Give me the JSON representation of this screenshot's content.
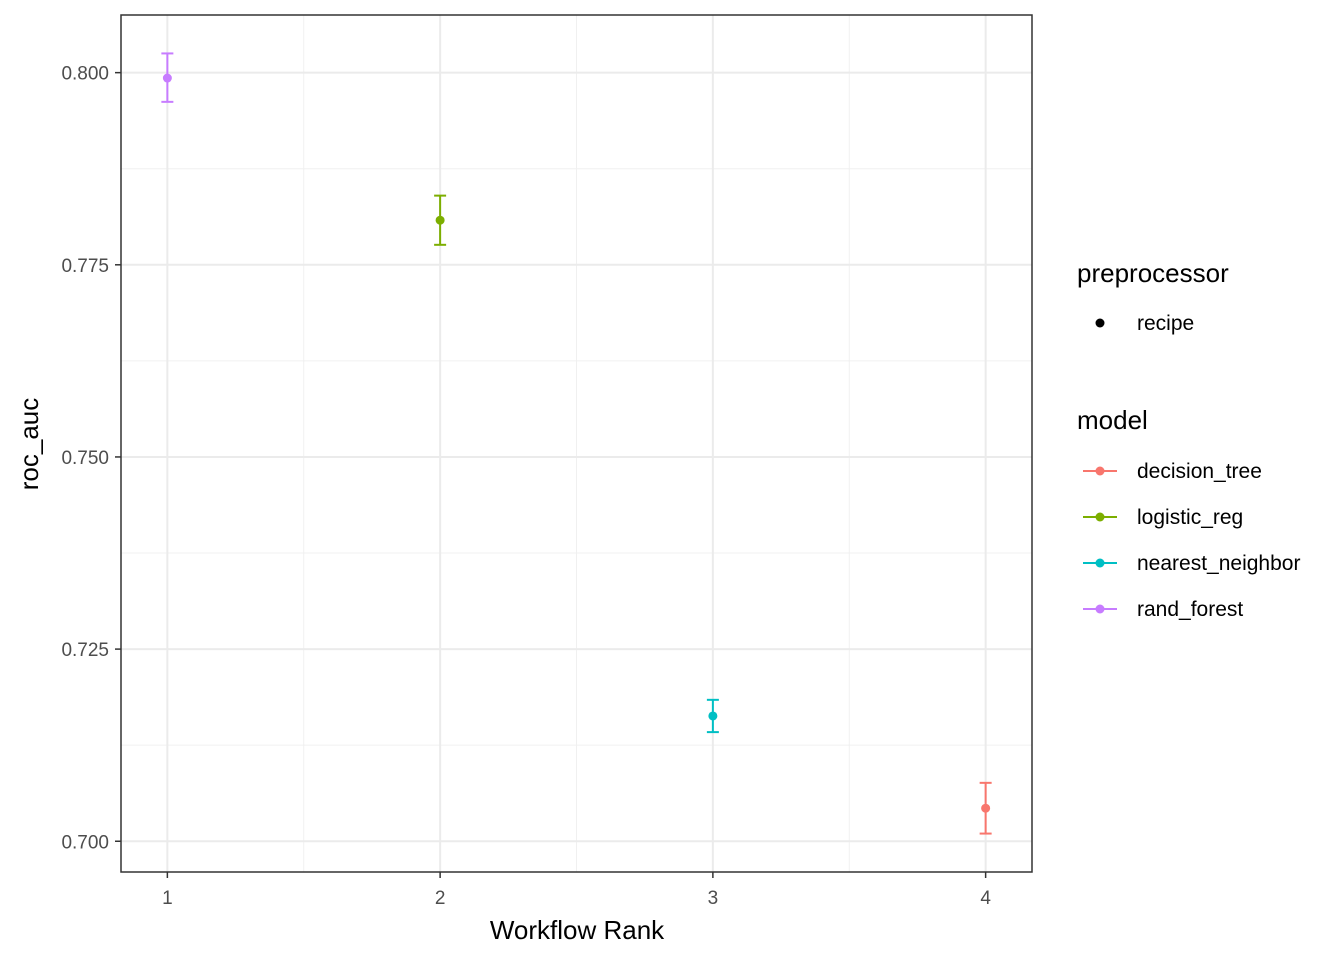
{
  "chart_data": {
    "type": "scatter",
    "xlabel": "Workflow Rank",
    "ylabel": "roc_auc",
    "x_ticks": [
      1,
      2,
      3,
      4
    ],
    "y_ticks": [
      "0.700",
      "0.725",
      "0.750",
      "0.775",
      "0.800"
    ],
    "xlim": [
      0.83,
      4.17
    ],
    "ylim": [
      0.696,
      0.8075
    ],
    "grid": true,
    "legend_position": "right",
    "points": [
      {
        "rank": 1,
        "model": "rand_forest",
        "preprocessor": "recipe",
        "mean": 0.7993,
        "lower": 0.7962,
        "upper": 0.8025
      },
      {
        "rank": 2,
        "model": "logistic_reg",
        "preprocessor": "recipe",
        "mean": 0.7808,
        "lower": 0.7776,
        "upper": 0.784
      },
      {
        "rank": 3,
        "model": "nearest_neighbor",
        "preprocessor": "recipe",
        "mean": 0.7163,
        "lower": 0.7142,
        "upper": 0.7184
      },
      {
        "rank": 4,
        "model": "decision_tree",
        "preprocessor": "recipe",
        "mean": 0.7043,
        "lower": 0.701,
        "upper": 0.7076
      }
    ],
    "legends": [
      {
        "title": "preprocessor",
        "items": [
          {
            "label": "recipe",
            "color": "#000000",
            "type": "point"
          }
        ]
      },
      {
        "title": "model",
        "items": [
          {
            "label": "decision_tree",
            "color": "#F8766D",
            "type": "pointline"
          },
          {
            "label": "logistic_reg",
            "color": "#7CAE00",
            "type": "pointline"
          },
          {
            "label": "nearest_neighbor",
            "color": "#00BFC4",
            "type": "pointline"
          },
          {
            "label": "rand_forest",
            "color": "#C77CFF",
            "type": "pointline"
          }
        ]
      }
    ]
  }
}
